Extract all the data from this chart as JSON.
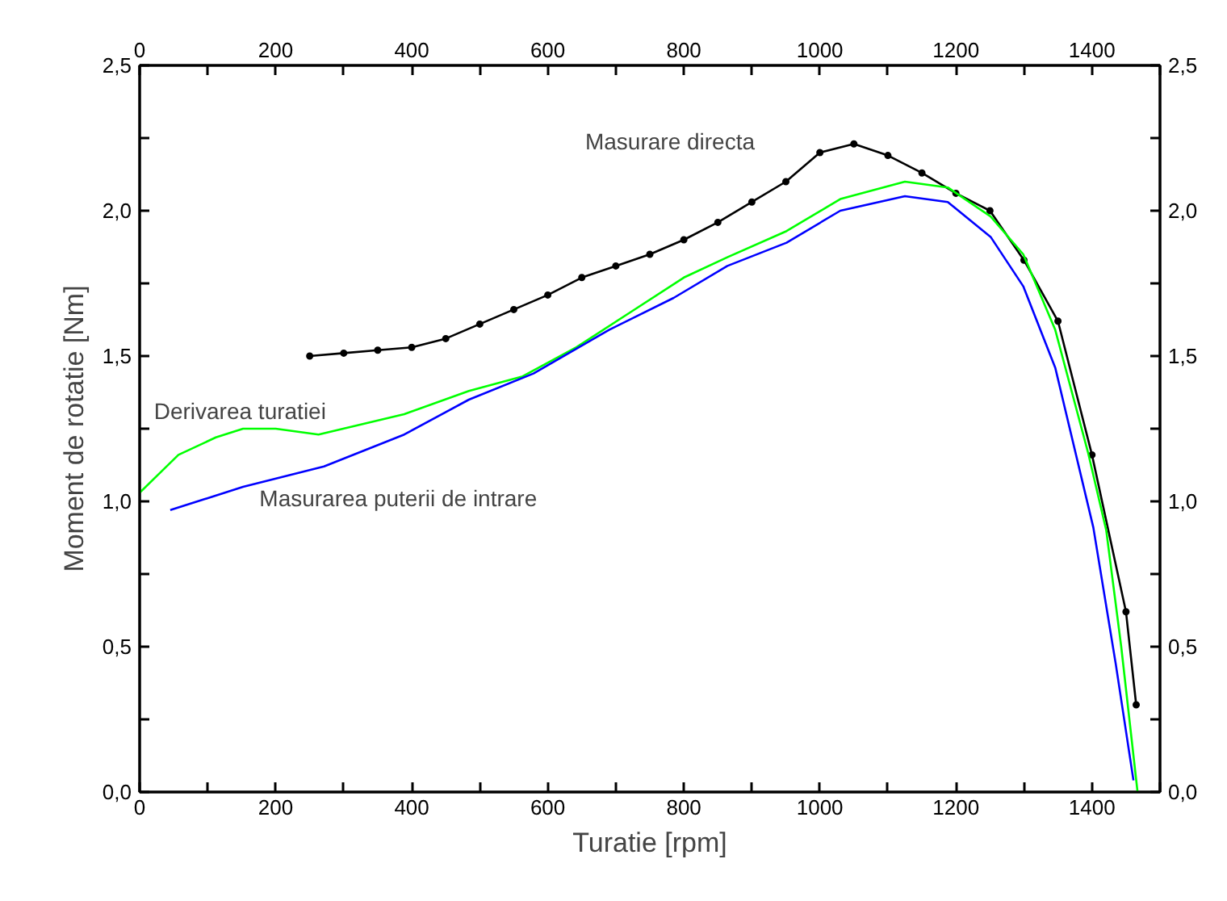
{
  "chart_data": {
    "type": "line",
    "xlabel": "Turatie [rpm]",
    "ylabel": "Moment de rotatie [Nm]",
    "xlim": [
      0,
      1500
    ],
    "x2lim": [
      0,
      1500
    ],
    "ylim": [
      0,
      2.5
    ],
    "y2lim": [
      0,
      2.5
    ],
    "xticks": [
      0,
      {
        "value": 100,
        "label": null
      },
      200,
      {
        "value": 300,
        "label": null
      },
      400,
      {
        "value": 500,
        "label": null
      },
      600,
      {
        "value": 700,
        "label": null
      },
      800,
      {
        "value": 900,
        "label": null
      },
      1000,
      {
        "value": 1100,
        "label": null
      },
      1200,
      {
        "value": 1300,
        "label": null
      },
      1400,
      {
        "value": 1500,
        "label": null
      }
    ],
    "x2ticks": [
      0,
      {
        "value": 100,
        "label": null
      },
      200,
      {
        "value": 300,
        "label": null
      },
      400,
      {
        "value": 500,
        "label": null
      },
      600,
      {
        "value": 700,
        "label": null
      },
      800,
      {
        "value": 900,
        "label": null
      },
      1000,
      {
        "value": 1100,
        "label": null
      },
      1200,
      {
        "value": 1300,
        "label": null
      },
      1400,
      {
        "value": 1500,
        "label": null
      }
    ],
    "yticks": [
      {
        "value": 0,
        "label": "0,0"
      },
      {
        "value": 0.25,
        "label": null
      },
      {
        "value": 0.5,
        "label": "0,5"
      },
      {
        "value": 0.75,
        "label": null
      },
      {
        "value": 1.0,
        "label": "1,0"
      },
      {
        "value": 1.25,
        "label": null
      },
      {
        "value": 1.5,
        "label": "1,5"
      },
      {
        "value": 1.75,
        "label": null
      },
      {
        "value": 2.0,
        "label": "2,0"
      },
      {
        "value": 2.25,
        "label": null
      },
      {
        "value": 2.5,
        "label": "2,5"
      }
    ],
    "y2ticks": [
      {
        "value": 0,
        "label": "0,0"
      },
      {
        "value": 0.25,
        "label": null
      },
      {
        "value": 0.5,
        "label": "0,5"
      },
      {
        "value": 0.75,
        "label": null
      },
      {
        "value": 1.0,
        "label": "1,0"
      },
      {
        "value": 1.25,
        "label": null
      },
      {
        "value": 1.5,
        "label": "1,5"
      },
      {
        "value": 1.75,
        "label": null
      },
      {
        "value": 2.0,
        "label": "2,0"
      },
      {
        "value": 2.25,
        "label": null
      },
      {
        "value": 2.5,
        "label": "2,5"
      }
    ],
    "grid": false,
    "series": [
      {
        "name": "Masurare directa",
        "color": "#000000",
        "marker": "circle",
        "x": [
          250,
          300,
          350,
          400,
          450,
          500,
          550,
          600,
          650,
          700,
          750,
          800,
          850,
          900,
          950,
          1000,
          1050,
          1100,
          1150,
          1200,
          1250,
          1300,
          1350,
          1400,
          1450,
          1465
        ],
        "values": [
          1.5,
          1.51,
          1.52,
          1.53,
          1.56,
          1.61,
          1.66,
          1.71,
          1.77,
          1.81,
          1.85,
          1.9,
          1.96,
          2.03,
          2.1,
          2.2,
          2.23,
          2.19,
          2.13,
          2.06,
          2.0,
          1.83,
          1.62,
          1.16,
          0.62,
          0.3
        ]
      },
      {
        "name": "Derivarea turatiei",
        "color": "#00ff00",
        "marker": "none",
        "x": [
          0,
          57,
          112,
          152,
          200,
          263,
          389,
          484,
          563,
          642,
          721,
          800,
          864,
          951,
          1030,
          1125,
          1188,
          1251,
          1299,
          1346,
          1394,
          1421,
          1443,
          1467
        ],
        "values": [
          1.03,
          1.16,
          1.22,
          1.25,
          1.25,
          1.23,
          1.3,
          1.38,
          1.43,
          1.53,
          1.65,
          1.77,
          1.84,
          1.93,
          2.04,
          2.1,
          2.08,
          1.98,
          1.85,
          1.59,
          1.17,
          0.9,
          0.5,
          0.0
        ]
      },
      {
        "name": "Masurarea puterii de intrare",
        "color": "#0000ff",
        "marker": "none",
        "x": [
          45,
          152,
          271,
          389,
          484,
          579,
          690,
          785,
          864,
          951,
          1030,
          1125,
          1188,
          1251,
          1299,
          1346,
          1402,
          1435,
          1461
        ],
        "values": [
          0.97,
          1.05,
          1.12,
          1.23,
          1.35,
          1.44,
          1.59,
          1.7,
          1.81,
          1.89,
          2.0,
          2.05,
          2.03,
          1.91,
          1.74,
          1.46,
          0.91,
          0.44,
          0.04
        ]
      }
    ]
  }
}
